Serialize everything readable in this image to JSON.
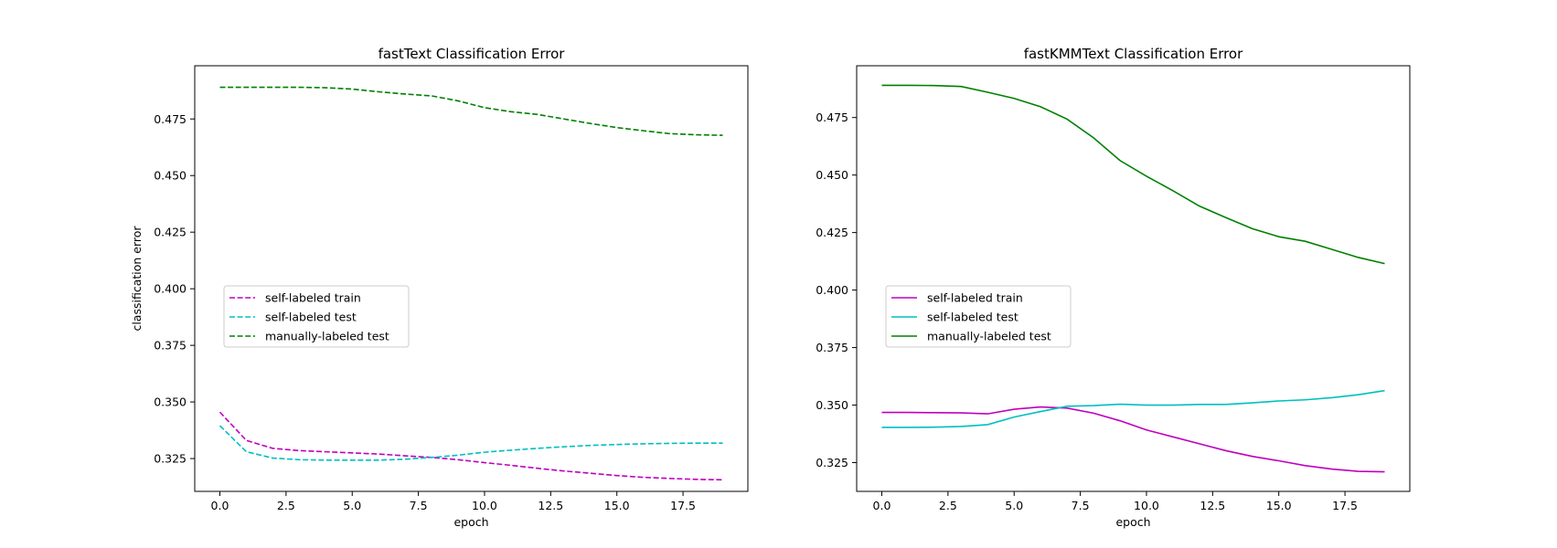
{
  "chart_data": [
    {
      "type": "line",
      "title": "fastText Classification Error",
      "xlabel": "epoch",
      "ylabel": "classification error",
      "xlim": [
        -0.95,
        19.95
      ],
      "ylim": [
        0.3105,
        0.4985
      ],
      "xticks": [
        0.0,
        2.5,
        5.0,
        7.5,
        10.0,
        12.5,
        15.0,
        17.5
      ],
      "xtick_labels": [
        "0.0",
        "2.5",
        "5.0",
        "7.5",
        "10.0",
        "12.5",
        "15.0",
        "17.5"
      ],
      "yticks": [
        0.325,
        0.35,
        0.375,
        0.4,
        0.425,
        0.45,
        0.475
      ],
      "ytick_labels": [
        "0.325",
        "0.350",
        "0.375",
        "0.400",
        "0.425",
        "0.450",
        "0.475"
      ],
      "legend_position": "center-left",
      "line_style": "dashed",
      "x": [
        0,
        1,
        2,
        3,
        4,
        5,
        6,
        7,
        8,
        9,
        10,
        11,
        12,
        13,
        14,
        15,
        16,
        17,
        18,
        19
      ],
      "series": [
        {
          "name": "self-labeled train",
          "color": "#bf00bf",
          "values": [
            0.3455,
            0.333,
            0.3295,
            0.3285,
            0.328,
            0.3275,
            0.327,
            0.3262,
            0.3255,
            0.3245,
            0.3232,
            0.322,
            0.3207,
            0.3195,
            0.3185,
            0.3175,
            0.3167,
            0.3162,
            0.3158,
            0.3156
          ]
        },
        {
          "name": "self-labeled test",
          "color": "#00bfbf",
          "values": [
            0.3395,
            0.328,
            0.3252,
            0.3245,
            0.3243,
            0.3243,
            0.3243,
            0.3247,
            0.3255,
            0.3265,
            0.3278,
            0.3287,
            0.3295,
            0.3302,
            0.3308,
            0.3312,
            0.3315,
            0.3317,
            0.3318,
            0.3318
          ]
        },
        {
          "name": "manually-labeled test",
          "color": "#008000",
          "values": [
            0.489,
            0.489,
            0.489,
            0.489,
            0.4888,
            0.4882,
            0.487,
            0.486,
            0.4852,
            0.483,
            0.48,
            0.4782,
            0.477,
            0.475,
            0.473,
            0.4712,
            0.4698,
            0.4685,
            0.468,
            0.4678
          ]
        }
      ]
    },
    {
      "type": "line",
      "title": "fastKMMText Classification Error",
      "xlabel": "epoch",
      "ylabel": "",
      "xlim": [
        -0.95,
        19.95
      ],
      "ylim": [
        0.3125,
        0.4975
      ],
      "xticks": [
        0.0,
        2.5,
        5.0,
        7.5,
        10.0,
        12.5,
        15.0,
        17.5
      ],
      "xtick_labels": [
        "0.0",
        "2.5",
        "5.0",
        "7.5",
        "10.0",
        "12.5",
        "15.0",
        "17.5"
      ],
      "yticks": [
        0.325,
        0.35,
        0.375,
        0.4,
        0.425,
        0.45,
        0.475
      ],
      "ytick_labels": [
        "0.325",
        "0.350",
        "0.375",
        "0.400",
        "0.425",
        "0.450",
        "0.475"
      ],
      "legend_position": "center-left",
      "line_style": "solid",
      "x": [
        0,
        1,
        2,
        3,
        4,
        5,
        6,
        7,
        8,
        9,
        10,
        11,
        12,
        13,
        14,
        15,
        16,
        17,
        18,
        19
      ],
      "series": [
        {
          "name": "self-labeled train",
          "color": "#bf00bf",
          "values": [
            0.3468,
            0.3468,
            0.3467,
            0.3466,
            0.3462,
            0.3482,
            0.3492,
            0.3487,
            0.3465,
            0.3432,
            0.3392,
            0.3362,
            0.3332,
            0.3302,
            0.3277,
            0.3258,
            0.3237,
            0.3222,
            0.3212,
            0.321
          ]
        },
        {
          "name": "self-labeled test",
          "color": "#00bfbf",
          "values": [
            0.3403,
            0.3403,
            0.3404,
            0.3407,
            0.3415,
            0.3448,
            0.3472,
            0.3495,
            0.3498,
            0.3504,
            0.35,
            0.35,
            0.3503,
            0.3503,
            0.351,
            0.3518,
            0.3523,
            0.3532,
            0.3545,
            0.3563
          ]
        },
        {
          "name": "manually-labeled test",
          "color": "#008000",
          "values": [
            0.489,
            0.489,
            0.4889,
            0.4885,
            0.486,
            0.4833,
            0.4797,
            0.4743,
            0.4662,
            0.4563,
            0.4495,
            0.4432,
            0.4365,
            0.4315,
            0.4267,
            0.4232,
            0.4212,
            0.4177,
            0.4142,
            0.4115
          ]
        }
      ]
    }
  ]
}
